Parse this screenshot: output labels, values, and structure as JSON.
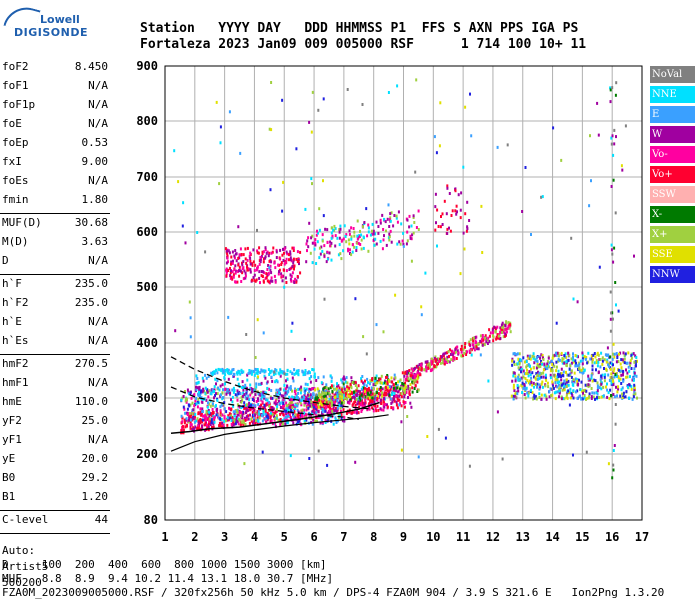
{
  "logo": {
    "line1": "Lowell",
    "line2": "DIGISONDE"
  },
  "header": {
    "labels": "Station   YYYY DAY   DDD HHMMSS P1  FFS S AXN PPS IGA PS",
    "values": "Fortaleza 2023 Jan09 009 005000 RSF      1 714 100 10+ 11"
  },
  "params": {
    "group1": [
      {
        "name": "foF2",
        "value": "8.450"
      },
      {
        "name": "foF1",
        "value": "N/A"
      },
      {
        "name": "foF1p",
        "value": "N/A"
      },
      {
        "name": "foE",
        "value": "N/A"
      },
      {
        "name": "foEp",
        "value": "0.53"
      },
      {
        "name": "fxI",
        "value": "9.00"
      },
      {
        "name": "foEs",
        "value": "N/A"
      },
      {
        "name": "fmin",
        "value": "1.80"
      }
    ],
    "group2": [
      {
        "name": "MUF(D)",
        "value": "30.68"
      },
      {
        "name": "M(D)",
        "value": "3.63"
      },
      {
        "name": "D",
        "value": "N/A"
      }
    ],
    "group3": [
      {
        "name": "h`F",
        "value": "235.0"
      },
      {
        "name": "h`F2",
        "value": "235.0"
      },
      {
        "name": "h`E",
        "value": "N/A"
      },
      {
        "name": "h`Es",
        "value": "N/A"
      }
    ],
    "group4": [
      {
        "name": "hmF2",
        "value": "270.5"
      },
      {
        "name": "hmF1",
        "value": "N/A"
      },
      {
        "name": "hmE",
        "value": "110.0"
      },
      {
        "name": "yF2",
        "value": "25.0"
      },
      {
        "name": "yF1",
        "value": "N/A"
      },
      {
        "name": "yE",
        "value": "20.0"
      },
      {
        "name": "B0",
        "value": "29.2"
      },
      {
        "name": "B1",
        "value": "1.20"
      }
    ],
    "group5": [
      {
        "name": "C-level",
        "value": "44"
      }
    ],
    "auto": [
      "Auto:",
      "Artist5",
      "500200"
    ]
  },
  "footer": {
    "d_line": "D     100  200  400  600  800 1000 1500 3000 [km]",
    "muf_line": "MUF   8.8  8.9  9.4 10.2 11.4 13.1 18.0 30.7 [MHz]",
    "file_line": "FZA0M_2023009005000.RSF / 320fx256h 50 kHz 5.0 km / DPS-4 FZA0M 904 / 3.9 S 321.6 E   Ion2Png 1.3.20"
  },
  "legend": [
    {
      "label": "NoVal",
      "color": "#808080"
    },
    {
      "label": "NNE",
      "color": "#00e0ff"
    },
    {
      "label": "E",
      "color": "#3aa0ff"
    },
    {
      "label": "W",
      "color": "#a000a0"
    },
    {
      "label": "Vo-",
      "color": "#ff00a0"
    },
    {
      "label": "Vo+",
      "color": "#ff0030"
    },
    {
      "label": "SSW",
      "color": "#ffb0b0"
    },
    {
      "label": "X-",
      "color": "#007a00"
    },
    {
      "label": "X+",
      "color": "#a0d040"
    },
    {
      "label": "SSE",
      "color": "#e0e000"
    },
    {
      "label": "NNW",
      "color": "#2020e0"
    }
  ],
  "chart_data": {
    "type": "scatter",
    "x_ticks": [
      "1",
      "2",
      "3",
      "4",
      "5",
      "6",
      "7",
      "8",
      "9",
      "10",
      "11",
      "12",
      "13",
      "14",
      "15",
      "16",
      "17"
    ],
    "y_ticks": [
      "80",
      "200",
      "300",
      "400",
      "500",
      "600",
      "700",
      "800",
      "900"
    ],
    "xlim": [
      1,
      17
    ],
    "ylim_km": [
      80,
      900
    ],
    "grid": true,
    "legend_position": "right",
    "traces": {
      "lower_profile": [
        [
          1.2,
          205
        ],
        [
          2,
          222
        ],
        [
          3,
          235
        ],
        [
          4,
          243
        ],
        [
          5,
          250
        ],
        [
          6,
          256
        ],
        [
          7,
          261
        ],
        [
          8,
          266
        ],
        [
          8.5,
          270
        ]
      ],
      "upper_profile": [
        [
          1.2,
          237
        ],
        [
          1.8,
          240
        ],
        [
          2.5,
          245
        ],
        [
          3.5,
          248
        ],
        [
          4.5,
          255
        ],
        [
          5.5,
          262
        ],
        [
          6.5,
          270
        ],
        [
          7.5,
          280
        ],
        [
          8.2,
          292
        ]
      ],
      "dashed_x": [
        [
          1.2,
          375
        ],
        [
          2,
          352
        ],
        [
          3,
          330
        ],
        [
          4,
          312
        ],
        [
          5,
          300
        ],
        [
          6,
          292
        ],
        [
          7,
          285
        ],
        [
          8,
          280
        ]
      ],
      "dashed_o": [
        [
          1.2,
          320
        ],
        [
          2,
          302
        ],
        [
          3,
          290
        ],
        [
          4,
          282
        ],
        [
          5,
          276
        ],
        [
          6,
          270
        ],
        [
          7,
          266
        ],
        [
          7.5,
          262
        ]
      ]
    }
  }
}
